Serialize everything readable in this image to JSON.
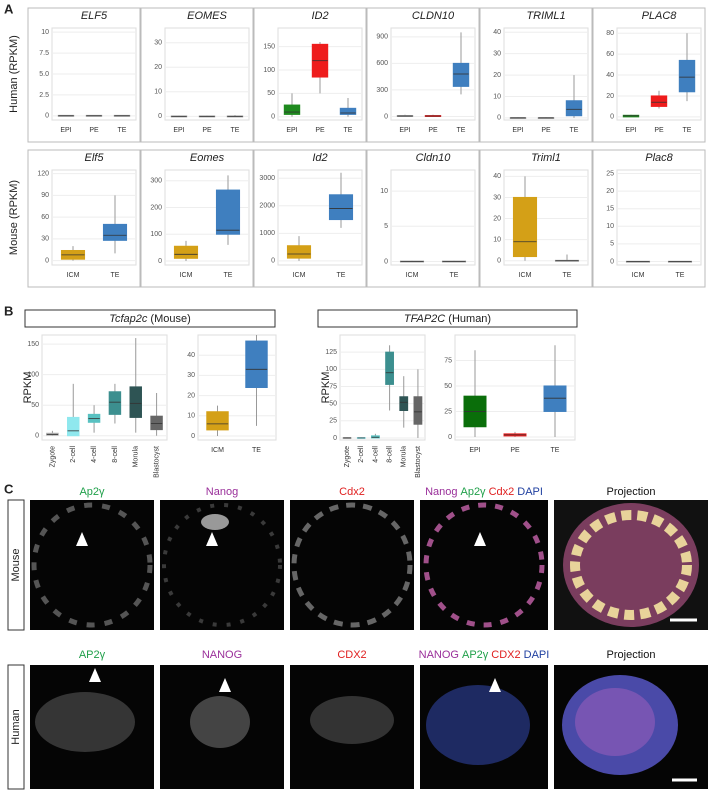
{
  "panel_letters": [
    "A",
    "B",
    "C"
  ],
  "chart_data": [
    {
      "type": "box",
      "title": "ELF5",
      "ylabel": "Human (RPKM)",
      "categories": [
        "EPI",
        "PE",
        "TE"
      ],
      "values": [
        [
          0,
          0,
          0,
          0.05,
          0.1
        ],
        [
          0,
          0,
          0,
          0.05,
          0.1
        ],
        [
          0,
          0,
          0,
          0.05,
          0.1
        ]
      ],
      "colors": [
        "#999999",
        "#999999",
        "#999999"
      ],
      "ylim": [
        -0.5,
        10.5
      ],
      "yticks": [
        0,
        2.5,
        {
          "value": 5,
          "label": "5.0"
        },
        7.5,
        10
      ]
    },
    {
      "type": "box",
      "title": "EOMES",
      "categories": [
        "EPI",
        "PE",
        "TE"
      ],
      "values": [
        [
          0,
          0,
          0,
          0.1,
          0.3
        ],
        [
          0,
          0,
          0,
          0.1,
          0.3
        ],
        [
          0,
          0,
          0,
          0.1,
          0.5
        ]
      ],
      "colors": [
        "#999999",
        "#999999",
        "#999999"
      ],
      "ylim": [
        -1.5,
        36
      ],
      "yticks": [
        0,
        10,
        20,
        30
      ]
    },
    {
      "type": "box",
      "title": "ID2",
      "categories": [
        "EPI",
        "PE",
        "TE"
      ],
      "values": [
        [
          0,
          5,
          10,
          25,
          50
        ],
        [
          50,
          85,
          120,
          155,
          160
        ],
        [
          0,
          5,
          8,
          18,
          40
        ]
      ],
      "colors": [
        "#1e8a1e",
        "#ee1c1c",
        "#3f7fbf"
      ],
      "ylim": [
        -7,
        190
      ],
      "yticks": [
        0,
        50,
        100,
        150
      ]
    },
    {
      "type": "box",
      "title": "CLDN10",
      "categories": [
        "EPI",
        "PE",
        "TE"
      ],
      "values": [
        [
          0,
          0,
          5,
          10,
          20
        ],
        [
          0,
          0,
          5,
          10,
          20
        ],
        [
          250,
          340,
          480,
          600,
          950
        ]
      ],
      "colors": [
        "#999999",
        "#ee1c1c",
        "#3f7fbf"
      ],
      "ylim": [
        -40,
        1000
      ],
      "yticks": [
        0,
        300,
        600,
        900
      ]
    },
    {
      "type": "box",
      "title": "TRIML1",
      "categories": [
        "EPI",
        "PE",
        "TE"
      ],
      "values": [
        [
          0,
          0,
          0,
          0.1,
          0.3
        ],
        [
          0,
          0,
          0,
          0.1,
          0.3
        ],
        [
          0,
          1,
          4,
          8,
          20
        ]
      ],
      "colors": [
        "#999999",
        "#999999",
        "#3f7fbf"
      ],
      "ylim": [
        -1,
        42
      ],
      "yticks": [
        0,
        10,
        20,
        30,
        40
      ]
    },
    {
      "type": "box",
      "title": "PLAC8",
      "categories": [
        "EPI",
        "PE",
        "TE"
      ],
      "values": [
        [
          0,
          0,
          1,
          1.5,
          2
        ],
        [
          8,
          10,
          14,
          20,
          25
        ],
        [
          15,
          24,
          38,
          54,
          80
        ]
      ],
      "colors": [
        "#1e8a1e",
        "#ee1c1c",
        "#3f7fbf"
      ],
      "ylim": [
        -3,
        85
      ],
      "yticks": [
        0,
        20,
        40,
        60,
        80
      ]
    },
    {
      "type": "box",
      "title": "Elf5",
      "ylabel": "Mouse (RPKM)",
      "categories": [
        "ICM",
        "TE"
      ],
      "values": [
        [
          0,
          2,
          8,
          14,
          20
        ],
        [
          10,
          28,
          35,
          50,
          90
        ]
      ],
      "colors": [
        "#d4a017",
        "#3f7fbf"
      ],
      "ylim": [
        -6,
        125
      ],
      "yticks": [
        0,
        30,
        60,
        90,
        120
      ]
    },
    {
      "type": "box",
      "title": "Eomes",
      "categories": [
        "ICM",
        "TE"
      ],
      "values": [
        [
          0,
          10,
          25,
          55,
          75
        ],
        [
          60,
          100,
          115,
          265,
          320
        ]
      ],
      "colors": [
        "#d4a017",
        "#3f7fbf"
      ],
      "ylim": [
        -15,
        340
      ],
      "yticks": [
        0,
        100,
        200,
        300
      ]
    },
    {
      "type": "box",
      "title": "Id2",
      "categories": [
        "ICM",
        "TE"
      ],
      "values": [
        [
          0,
          100,
          250,
          550,
          900
        ],
        [
          1200,
          1500,
          1900,
          2400,
          3200
        ]
      ],
      "colors": [
        "#d4a017",
        "#3f7fbf"
      ],
      "ylim": [
        -150,
        3300
      ],
      "yticks": [
        0,
        1000,
        2000,
        3000
      ]
    },
    {
      "type": "box",
      "title": "Cldn10",
      "categories": [
        "ICM",
        "TE"
      ],
      "values": [
        [
          0,
          0,
          0,
          0.05,
          0.1
        ],
        [
          0,
          0,
          0,
          0.05,
          0.1
        ]
      ],
      "colors": [
        "#999999",
        "#999999"
      ],
      "ylim": [
        -0.5,
        13
      ],
      "yticks": [
        0,
        5,
        10
      ]
    },
    {
      "type": "box",
      "title": "Triml1",
      "categories": [
        "ICM",
        "TE"
      ],
      "values": [
        [
          0,
          2,
          9,
          30,
          40
        ],
        [
          0,
          0,
          0,
          0.2,
          3
        ]
      ],
      "colors": [
        "#d4a017",
        "#999999"
      ],
      "ylim": [
        -2,
        43
      ],
      "yticks": [
        0,
        10,
        20,
        30,
        40
      ]
    },
    {
      "type": "box",
      "title": "Plac8",
      "categories": [
        "ICM",
        "TE"
      ],
      "values": [
        [
          0,
          0,
          0,
          0.05,
          0.1
        ],
        [
          0,
          0,
          0,
          0.05,
          0.1
        ]
      ],
      "colors": [
        "#999999",
        "#999999"
      ],
      "ylim": [
        -1,
        26
      ],
      "yticks": [
        0,
        5,
        10,
        15,
        20,
        25
      ]
    },
    {
      "type": "box",
      "ylabel": "RPKM",
      "categories": [
        "Zygote",
        "2-cell",
        "4-cell",
        "8-cell",
        "Morula",
        "Blastocyst"
      ],
      "values": [
        [
          0,
          1,
          2,
          4,
          8
        ],
        [
          0,
          0,
          8,
          30,
          85
        ],
        [
          5,
          22,
          28,
          35,
          50
        ],
        [
          20,
          35,
          55,
          72,
          85
        ],
        [
          5,
          30,
          53,
          80,
          160
        ],
        [
          0,
          10,
          20,
          32,
          70
        ]
      ],
      "colors": [
        "#aaaaaa",
        "#8fe8ee",
        "#58c1c1",
        "#3c8f8f",
        "#2e5454",
        "#666666"
      ],
      "ylim": [
        -7,
        165
      ],
      "yticks": [
        0,
        50,
        100,
        150
      ]
    },
    {
      "type": "box",
      "categories": [
        "ICM",
        "TE"
      ],
      "values": [
        [
          0,
          3,
          6,
          12,
          15
        ],
        [
          5,
          24,
          33,
          47,
          50
        ]
      ],
      "colors": [
        "#d4a017",
        "#3f7fbf"
      ],
      "ylim": [
        -2,
        50
      ],
      "yticks": [
        0,
        10,
        20,
        30,
        40
      ]
    },
    {
      "type": "box",
      "ylabel": "RPKM",
      "categories": [
        "Zygote",
        "2-cell",
        "4-cell",
        "8-cell",
        "Morula",
        "Blastocyst"
      ],
      "values": [
        [
          0,
          0,
          0,
          0.5,
          1
        ],
        [
          0,
          0,
          0,
          0.5,
          1
        ],
        [
          0,
          0,
          1,
          3,
          6
        ],
        [
          40,
          78,
          95,
          125,
          135
        ],
        [
          15,
          40,
          52,
          60,
          90
        ],
        [
          0,
          20,
          38,
          60,
          100
        ]
      ],
      "colors": [
        "#aaaaaa",
        "#8fe8ee",
        "#58c1c1",
        "#3c8f8f",
        "#2e5454",
        "#666666"
      ],
      "ylim": [
        -3,
        150
      ],
      "yticks": [
        0,
        25,
        50,
        75,
        100,
        125
      ]
    },
    {
      "type": "box",
      "categories": [
        "EPI",
        "PE",
        "TE"
      ],
      "values": [
        [
          0,
          10,
          25,
          40,
          85
        ],
        [
          0,
          1,
          2,
          3,
          5
        ],
        [
          0,
          25,
          38,
          50,
          90
        ]
      ],
      "colors": [
        "#0a6e0a",
        "#ee1c1c",
        "#3f7fbf"
      ],
      "ylim": [
        -3,
        100
      ],
      "yticks": [
        0,
        25,
        50,
        75
      ]
    }
  ],
  "panel_b": {
    "headers": [
      [
        {
          "text": "Tcfap2c",
          "italic": true
        },
        {
          "text": " (Mouse)",
          "italic": false
        }
      ],
      [
        {
          "text": "TFAP2C",
          "italic": true
        },
        {
          "text": " (Human)",
          "italic": false
        }
      ]
    ]
  },
  "panel_c": {
    "rows": [
      {
        "name": "Mouse",
        "labels": [
          [
            {
              "text": "Ap2γ",
              "color": "#20a04a"
            }
          ],
          [
            {
              "text": "Nanog",
              "color": "#9a2f9a"
            }
          ],
          [
            {
              "text": "Cdx2",
              "color": "#e02020"
            }
          ],
          [
            {
              "text": "Nanog",
              "color": "#9a2f9a"
            },
            {
              "text": "Ap2γ",
              "color": "#20a04a"
            },
            {
              "text": "Cdx2",
              "color": "#e02020"
            },
            {
              "text": "DAPI",
              "color": "#1f3fa0"
            }
          ],
          [
            {
              "text": "Projection",
              "color": "#111111"
            }
          ]
        ]
      },
      {
        "name": "Human",
        "labels": [
          [
            {
              "text": "AP2γ",
              "color": "#20a04a"
            }
          ],
          [
            {
              "text": "NANOG",
              "color": "#9a2f9a"
            }
          ],
          [
            {
              "text": "CDX2",
              "color": "#e02020"
            }
          ],
          [
            {
              "text": "NANOG",
              "color": "#9a2f9a"
            },
            {
              "text": "AP2γ",
              "color": "#20a04a"
            },
            {
              "text": "CDX2",
              "color": "#e02020"
            },
            {
              "text": "DAPI",
              "color": "#1f3fa0"
            }
          ],
          [
            {
              "text": "Projection",
              "color": "#111111"
            }
          ]
        ]
      }
    ]
  }
}
